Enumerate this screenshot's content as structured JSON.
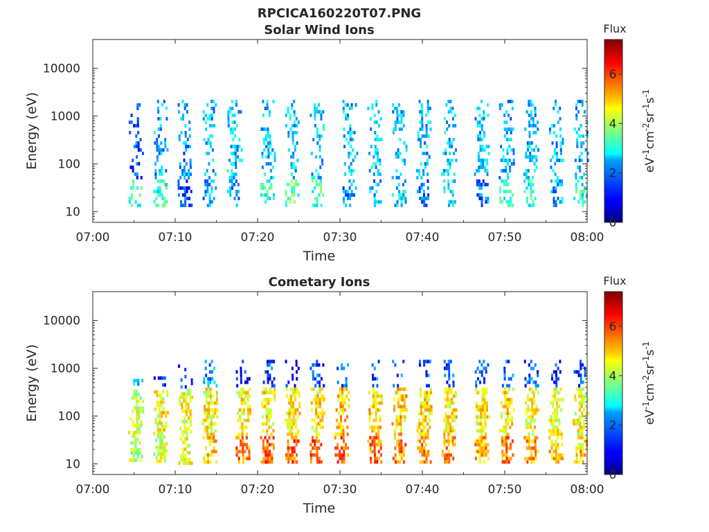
{
  "figure": {
    "title": "RPCICA160220T07.PNG"
  },
  "chart_data": [
    {
      "type": "heatmap",
      "title": "Solar Wind Ions",
      "xlabel": "Time",
      "ylabel": "Energy (eV)",
      "x_ticks": [
        "07:00",
        "07:10",
        "07:20",
        "07:30",
        "07:40",
        "07:50",
        "08:00"
      ],
      "x_range": [
        "07:00",
        "08:00"
      ],
      "y_scale": "log",
      "y_ticks": [
        "10",
        "100",
        "1000",
        "10000"
      ],
      "y_range": [
        6,
        40000
      ],
      "colorbar": {
        "title": "Flux",
        "label": "eV-1cm-2sr-1s-1",
        "range": [
          0,
          7.4
        ],
        "ticks": [
          "0",
          "2",
          "4",
          "6"
        ],
        "colormap": "jet"
      },
      "bursts": [
        {
          "time": "07:05",
          "energy_range": [
            14,
            2200
          ],
          "low_band_flux": 3.0,
          "high_band_flux": 1.5
        },
        {
          "time": "07:08",
          "energy_range": [
            14,
            2200
          ],
          "low_band_flux": 3.0,
          "high_band_flux": 2.2
        },
        {
          "time": "07:11",
          "energy_range": [
            14,
            2200
          ],
          "low_band_flux": 1.5,
          "high_band_flux": 2.0
        },
        {
          "time": "07:14",
          "energy_range": [
            14,
            2200
          ],
          "low_band_flux": 2.0,
          "high_band_flux": 2.3
        },
        {
          "time": "07:17",
          "energy_range": [
            14,
            2200
          ],
          "low_band_flux": 2.0,
          "high_band_flux": 2.4
        },
        {
          "time": "07:21",
          "energy_range": [
            14,
            2200
          ],
          "low_band_flux": 3.2,
          "high_band_flux": 2.4
        },
        {
          "time": "07:24",
          "energy_range": [
            14,
            2200
          ],
          "low_band_flux": 3.4,
          "high_band_flux": 2.4
        },
        {
          "time": "07:27",
          "energy_range": [
            14,
            2200
          ],
          "low_band_flux": 3.3,
          "high_band_flux": 2.4
        },
        {
          "time": "07:31",
          "energy_range": [
            14,
            2200
          ],
          "low_band_flux": 1.8,
          "high_band_flux": 2.3
        },
        {
          "time": "07:34",
          "energy_range": [
            14,
            2200
          ],
          "low_band_flux": 2.2,
          "high_band_flux": 2.3
        },
        {
          "time": "07:37",
          "energy_range": [
            14,
            2200
          ],
          "low_band_flux": 2.5,
          "high_band_flux": 2.3
        },
        {
          "time": "07:40",
          "energy_range": [
            14,
            2200
          ],
          "low_band_flux": 1.8,
          "high_band_flux": 2.3
        },
        {
          "time": "07:43",
          "energy_range": [
            14,
            2200
          ],
          "low_band_flux": 2.5,
          "high_band_flux": 2.4
        },
        {
          "time": "07:47",
          "energy_range": [
            14,
            2200
          ],
          "low_band_flux": 1.8,
          "high_band_flux": 2.3
        },
        {
          "time": "07:50",
          "energy_range": [
            14,
            2200
          ],
          "low_band_flux": 3.0,
          "high_band_flux": 2.2
        },
        {
          "time": "07:53",
          "energy_range": [
            14,
            2200
          ],
          "low_band_flux": 3.0,
          "high_band_flux": 2.3
        },
        {
          "time": "07:56",
          "energy_range": [
            14,
            2200
          ],
          "low_band_flux": 2.0,
          "high_band_flux": 2.3
        },
        {
          "time": "07:59",
          "energy_range": [
            14,
            2200
          ],
          "low_band_flux": 3.0,
          "high_band_flux": 2.2
        }
      ]
    },
    {
      "type": "heatmap",
      "title": "Cometary Ions",
      "xlabel": "Time",
      "ylabel": "Energy (eV)",
      "x_ticks": [
        "07:00",
        "07:10",
        "07:20",
        "07:30",
        "07:40",
        "07:50",
        "08:00"
      ],
      "x_range": [
        "07:00",
        "08:00"
      ],
      "y_scale": "log",
      "y_ticks": [
        "10",
        "100",
        "1000",
        "10000"
      ],
      "y_range": [
        6,
        40000
      ],
      "colorbar": {
        "title": "Flux",
        "label": "eV-1cm-2sr-1s-1",
        "range": [
          0,
          7.4
        ],
        "ticks": [
          "0",
          "2",
          "4",
          "6"
        ],
        "colormap": "jet"
      },
      "bursts": [
        {
          "time": "07:05",
          "energy_range": [
            11,
            600
          ],
          "low_band_flux": 4.0,
          "mid_band_flux": 4.3,
          "high_band_flux": 2.5
        },
        {
          "time": "07:08",
          "energy_range": [
            11,
            800
          ],
          "low_band_flux": 4.2,
          "mid_band_flux": 4.5,
          "high_band_flux": 1.2
        },
        {
          "time": "07:11",
          "energy_range": [
            11,
            1200
          ],
          "low_band_flux": 4.5,
          "mid_band_flux": 4.5,
          "high_band_flux": 1.5
        },
        {
          "time": "07:14",
          "energy_range": [
            11,
            1500
          ],
          "low_band_flux": 5.0,
          "mid_band_flux": 4.6,
          "high_band_flux": 2.0
        },
        {
          "time": "07:18",
          "energy_range": [
            11,
            1500
          ],
          "low_band_flux": 5.6,
          "mid_band_flux": 4.7,
          "high_band_flux": 1.0
        },
        {
          "time": "07:21",
          "energy_range": [
            11,
            1500
          ],
          "low_band_flux": 5.8,
          "mid_band_flux": 4.7,
          "high_band_flux": 1.5
        },
        {
          "time": "07:24",
          "energy_range": [
            11,
            1500
          ],
          "low_band_flux": 5.8,
          "mid_band_flux": 4.7,
          "high_band_flux": 1.2
        },
        {
          "time": "07:27",
          "energy_range": [
            11,
            1500
          ],
          "low_band_flux": 6.0,
          "mid_band_flux": 4.8,
          "high_band_flux": 1.5
        },
        {
          "time": "07:30",
          "energy_range": [
            11,
            1500
          ],
          "low_band_flux": 5.8,
          "mid_band_flux": 5.0,
          "high_band_flux": 1.5
        },
        {
          "time": "07:34",
          "energy_range": [
            11,
            1500
          ],
          "low_band_flux": 5.6,
          "mid_band_flux": 5.0,
          "high_band_flux": 1.5
        },
        {
          "time": "07:37",
          "energy_range": [
            11,
            1500
          ],
          "low_band_flux": 5.5,
          "mid_band_flux": 5.0,
          "high_band_flux": 1.5
        },
        {
          "time": "07:40",
          "energy_range": [
            11,
            1500
          ],
          "low_band_flux": 5.5,
          "mid_band_flux": 4.8,
          "high_band_flux": 1.5
        },
        {
          "time": "07:43",
          "energy_range": [
            11,
            1500
          ],
          "low_band_flux": 5.4,
          "mid_band_flux": 4.7,
          "high_band_flux": 1.5
        },
        {
          "time": "07:47",
          "energy_range": [
            11,
            1500
          ],
          "low_band_flux": 5.2,
          "mid_band_flux": 4.7,
          "high_band_flux": 1.5
        },
        {
          "time": "07:50",
          "energy_range": [
            11,
            1500
          ],
          "low_band_flux": 5.5,
          "mid_band_flux": 4.8,
          "high_band_flux": 1.5
        },
        {
          "time": "07:53",
          "energy_range": [
            11,
            1500
          ],
          "low_band_flux": 5.3,
          "mid_band_flux": 4.6,
          "high_band_flux": 1.5
        },
        {
          "time": "07:56",
          "energy_range": [
            11,
            1500
          ],
          "low_band_flux": 5.0,
          "mid_band_flux": 4.5,
          "high_band_flux": 1.2
        },
        {
          "time": "07:59",
          "energy_range": [
            11,
            1500
          ],
          "low_band_flux": 5.0,
          "mid_band_flux": 4.5,
          "high_band_flux": 1.5
        }
      ]
    }
  ]
}
